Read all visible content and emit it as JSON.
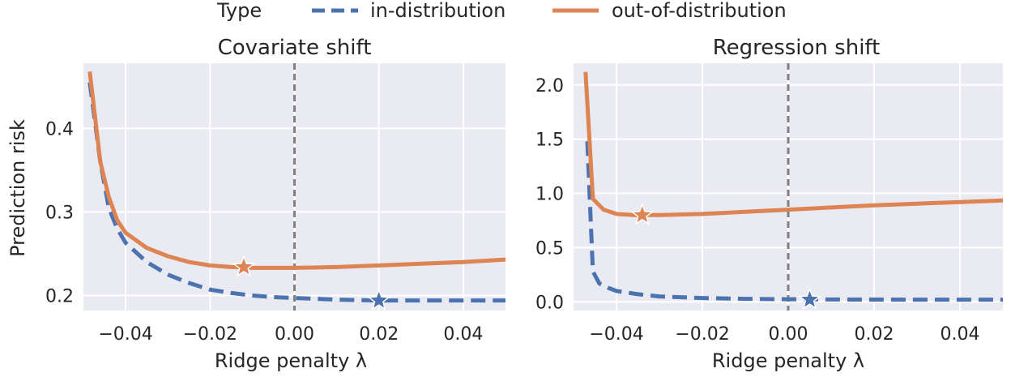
{
  "legend": {
    "title": "Type",
    "entries": [
      {
        "label": "in-distribution",
        "color": "#4c72b0",
        "style": "dashed"
      },
      {
        "label": "out-of-distribution",
        "color": "#dd8452",
        "style": "solid"
      }
    ],
    "placement": "top-center"
  },
  "colors": {
    "panel_bg": "#eaeaf2",
    "grid": "#ffffff",
    "ref_line": "#808080"
  },
  "chart_data": [
    {
      "type": "line",
      "title": "Covariate shift",
      "xlabel": "Ridge penalty λ",
      "ylabel": "Prediction risk",
      "xlim": [
        -0.05,
        0.05
      ],
      "ylim": [
        0.182,
        0.478
      ],
      "xticks": [
        -0.04,
        -0.02,
        0.0,
        0.02,
        0.04
      ],
      "xtick_labels": [
        "−0.04",
        "−0.02",
        "0.00",
        "0.02",
        "0.04"
      ],
      "yticks": [
        0.2,
        0.3,
        0.4
      ],
      "ytick_labels": [
        "0.2",
        "0.3",
        "0.4"
      ],
      "grid": true,
      "vline_x": 0.0,
      "series": [
        {
          "name": "in-distribution",
          "color": "#4c72b0",
          "dash": true,
          "x": [
            -0.0485,
            -0.046,
            -0.044,
            -0.042,
            -0.04,
            -0.035,
            -0.03,
            -0.025,
            -0.02,
            -0.015,
            -0.01,
            -0.005,
            0.0,
            0.01,
            0.02,
            0.03,
            0.04,
            0.05
          ],
          "y": [
            0.455,
            0.36,
            0.305,
            0.28,
            0.263,
            0.24,
            0.225,
            0.215,
            0.207,
            0.203,
            0.2,
            0.198,
            0.197,
            0.195,
            0.194,
            0.194,
            0.194,
            0.194
          ],
          "optimum": {
            "x": 0.02,
            "y": 0.194
          }
        },
        {
          "name": "out-of-distribution",
          "color": "#dd8452",
          "dash": false,
          "x": [
            -0.0485,
            -0.046,
            -0.044,
            -0.042,
            -0.04,
            -0.035,
            -0.03,
            -0.025,
            -0.02,
            -0.015,
            -0.01,
            -0.005,
            0.0,
            0.01,
            0.02,
            0.03,
            0.04,
            0.05
          ],
          "y": [
            0.468,
            0.36,
            0.318,
            0.29,
            0.275,
            0.257,
            0.247,
            0.24,
            0.236,
            0.234,
            0.233,
            0.233,
            0.233,
            0.234,
            0.236,
            0.238,
            0.24,
            0.243
          ],
          "optimum": {
            "x": -0.012,
            "y": 0.234
          }
        }
      ]
    },
    {
      "type": "line",
      "title": "Regression shift",
      "xlabel": "Ridge penalty λ",
      "ylabel": "",
      "xlim": [
        -0.05,
        0.05
      ],
      "ylim": [
        -0.08,
        2.2
      ],
      "xticks": [
        -0.04,
        -0.02,
        0.0,
        0.02,
        0.04
      ],
      "xtick_labels": [
        "−0.04",
        "−0.02",
        "0.00",
        "0.02",
        "0.04"
      ],
      "yticks": [
        0.0,
        0.5,
        1.0,
        1.5,
        2.0
      ],
      "ytick_labels": [
        "0.0",
        "0.5",
        "1.0",
        "1.5",
        "2.0"
      ],
      "grid": true,
      "vline_x": 0.0,
      "series": [
        {
          "name": "in-distribution",
          "color": "#4c72b0",
          "dash": true,
          "x": [
            -0.0468,
            -0.0455,
            -0.044,
            -0.042,
            -0.04,
            -0.035,
            -0.03,
            -0.02,
            -0.01,
            0.0,
            0.01,
            0.02,
            0.03,
            0.04,
            0.05
          ],
          "y": [
            1.48,
            0.28,
            0.17,
            0.13,
            0.1,
            0.07,
            0.05,
            0.035,
            0.028,
            0.024,
            0.022,
            0.021,
            0.02,
            0.02,
            0.02
          ],
          "optimum": {
            "x": 0.005,
            "y": 0.02
          }
        },
        {
          "name": "out-of-distribution",
          "color": "#dd8452",
          "dash": false,
          "x": [
            -0.0472,
            -0.0455,
            -0.043,
            -0.04,
            -0.036,
            -0.034,
            -0.03,
            -0.02,
            -0.01,
            0.0,
            0.01,
            0.02,
            0.03,
            0.04,
            0.05
          ],
          "y": [
            2.12,
            0.95,
            0.85,
            0.81,
            0.8,
            0.8,
            0.8,
            0.81,
            0.83,
            0.85,
            0.87,
            0.89,
            0.905,
            0.92,
            0.935
          ],
          "optimum": {
            "x": -0.034,
            "y": 0.8
          }
        }
      ]
    }
  ]
}
